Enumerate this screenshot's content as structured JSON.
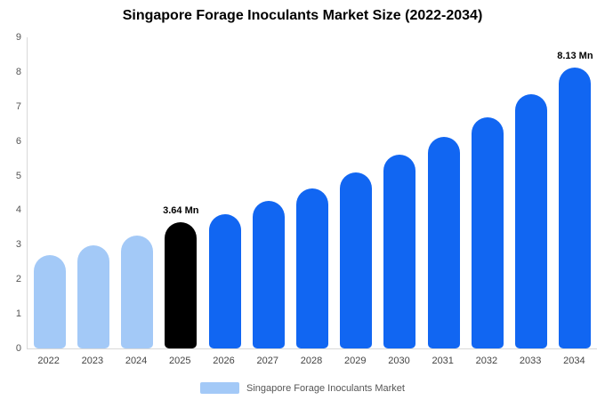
{
  "title": "Singapore Forage Inoculants Market  Size (2022-2034)",
  "chart_data": {
    "type": "bar",
    "title": "Singapore Forage Inoculants Market  Size (2022-2034)",
    "categories": [
      "2022",
      "2023",
      "2024",
      "2025",
      "2026",
      "2027",
      "2028",
      "2029",
      "2030",
      "2031",
      "2032",
      "2033",
      "2034"
    ],
    "values": [
      2.7,
      2.98,
      3.27,
      3.64,
      3.89,
      4.27,
      4.64,
      5.08,
      5.6,
      6.13,
      6.69,
      7.35,
      8.13
    ],
    "unit": "Mn",
    "ylim": [
      0,
      9
    ],
    "yticks": [
      0,
      1,
      2,
      3,
      4,
      5,
      6,
      7,
      8,
      9
    ],
    "grid": "off",
    "legend_position": "bottom",
    "bar_roles": [
      "historical",
      "historical",
      "historical",
      "highlight",
      "forecast",
      "forecast",
      "forecast",
      "forecast",
      "forecast",
      "forecast",
      "forecast",
      "forecast",
      "forecast"
    ],
    "colors": {
      "historical": "#a3c9f7",
      "highlight": "#000000",
      "forecast": "#1166f2"
    },
    "annotations": [
      {
        "index": 3,
        "label": "3.64 Mn"
      },
      {
        "index": 12,
        "label": "8.13 Mn"
      }
    ]
  },
  "legend": {
    "label": "Singapore Forage Inoculants Market",
    "swatch_color": "#a3c9f7"
  }
}
